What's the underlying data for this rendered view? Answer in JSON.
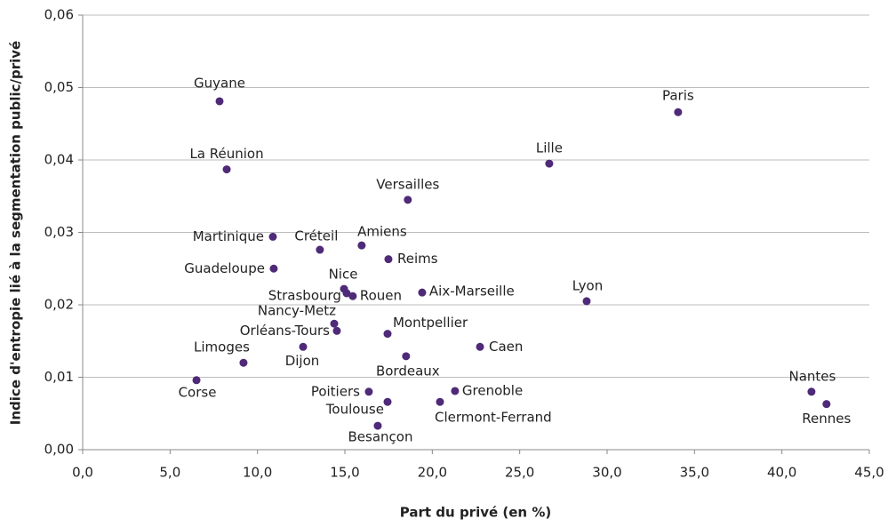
{
  "chart_data": {
    "type": "scatter",
    "x_label": "Part du privé (en %)",
    "y_label": "Indice d'entropie lié à la segmentation public/privé",
    "color": "#4e2a78",
    "grid": true,
    "xlim": [
      0,
      45
    ],
    "ylim": [
      0,
      0.06
    ],
    "xticks": [
      {
        "value": 0,
        "label": "0,0"
      },
      {
        "value": 5,
        "label": "5,0"
      },
      {
        "value": 10,
        "label": "10,0"
      },
      {
        "value": 15,
        "label": "15,0"
      },
      {
        "value": 20,
        "label": "20,0"
      },
      {
        "value": 25,
        "label": "25,0"
      },
      {
        "value": 30,
        "label": "30,0"
      },
      {
        "value": 35,
        "label": "35,0"
      },
      {
        "value": 40,
        "label": "40,0"
      },
      {
        "value": 45,
        "label": "45,0"
      }
    ],
    "yticks": [
      {
        "value": 0,
        "label": "0,00"
      },
      {
        "value": 0.01,
        "label": "0,01"
      },
      {
        "value": 0.02,
        "label": "0,02"
      },
      {
        "value": 0.03,
        "label": "0,03"
      },
      {
        "value": 0.04,
        "label": "0,04"
      },
      {
        "value": 0.05,
        "label": "0,05"
      },
      {
        "value": 0.06,
        "label": "0,06"
      }
    ],
    "labels": [
      "Guyane",
      "Paris",
      "La Réunion",
      "Lille",
      "Versailles",
      "Martinique",
      "Créteil",
      "Amiens",
      "Reims",
      "Guadeloupe",
      "Nice",
      "Strasbourg",
      "Rouen",
      "Aix-Marseille",
      "Lyon",
      "Nancy-Metz",
      "Orléans-Tours",
      "Montpellier",
      "Dijon",
      "Caen",
      "Limoges",
      "Bordeaux",
      "Corse",
      "Poitiers",
      "Grenoble",
      "Toulouse",
      "Clermont-Ferrand",
      "Besançon",
      "Nantes",
      "Rennes"
    ],
    "x": [
      7.83,
      34.06,
      8.24,
      26.69,
      18.6,
      10.88,
      13.57,
      15.96,
      17.49,
      10.93,
      14.95,
      15.1,
      15.45,
      19.42,
      28.83,
      14.39,
      14.54,
      17.44,
      12.61,
      22.73,
      9.2,
      18.5,
      6.51,
      16.37,
      21.3,
      17.44,
      20.44,
      16.88,
      41.69,
      42.55
    ],
    "values": [
      0.0481,
      0.0466,
      0.0387,
      0.0395,
      0.0345,
      0.0294,
      0.0276,
      0.0282,
      0.0263,
      0.025,
      0.0222,
      0.0216,
      0.0212,
      0.0217,
      0.0205,
      0.0174,
      0.0164,
      0.016,
      0.0142,
      0.0142,
      0.012,
      0.0129,
      0.0096,
      0.008,
      0.0081,
      0.0066,
      0.0066,
      0.0033,
      0.008,
      0.0063
    ]
  }
}
